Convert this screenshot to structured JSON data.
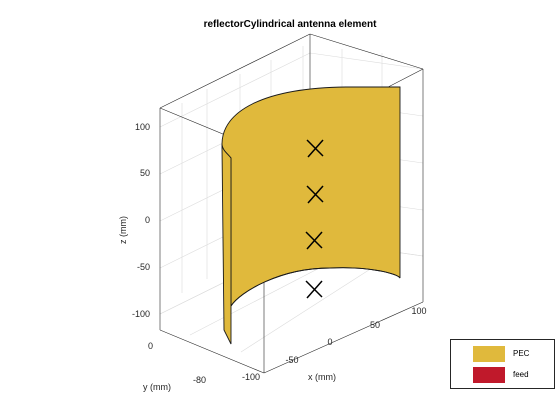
{
  "figure": {
    "title": "reflectorCylindrical antenna element",
    "axes": {
      "xlabel": "x (mm)",
      "ylabel": "y (mm)",
      "zlabel": "z (mm)",
      "x_ticks": [
        "-100",
        "-50",
        "0",
        "50",
        "100"
      ],
      "y_ticks": [
        "-80",
        "0"
      ],
      "z_ticks": [
        "-100",
        "-50",
        "0",
        "50",
        "100"
      ]
    },
    "colors": {
      "pec": "#e0b93c",
      "feed": "#c0192b",
      "box": "#262626",
      "grid": "#dcdcdc"
    },
    "feed_markers": 4
  },
  "legend": {
    "items": [
      {
        "label": "PEC",
        "color": "#e0b93c"
      },
      {
        "label": "feed",
        "color": "#c0192b"
      }
    ]
  }
}
